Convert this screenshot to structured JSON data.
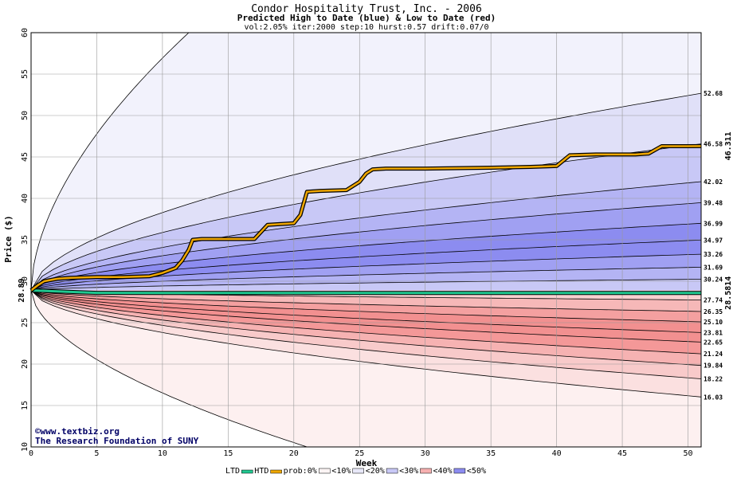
{
  "chart_data": {
    "type": "area",
    "title": "Condor Hospitality Trust, Inc. - 2006",
    "subtitle": "Predicted High to Date (blue) &  Low to Date (red)",
    "params": "vol:2.05% iter:2000 step:10 hurst:0.57 drift:0.07/0",
    "xlabel": "Week",
    "ylabel": "Price ($)",
    "xlim": [
      0,
      51
    ],
    "ylim": [
      10,
      60
    ],
    "x_ticks": [
      "0",
      "5",
      "10",
      "15",
      "20",
      "25",
      "30",
      "35",
      "40",
      "45",
      "50"
    ],
    "y_ticks": [
      "10",
      "15",
      "20",
      "25",
      "30",
      "35",
      "40",
      "45",
      "50",
      "55",
      "60"
    ],
    "start_price": 28.89,
    "start_label": "28.89",
    "right_labels": [
      "52.68",
      "46.58",
      "42.02",
      "39.48",
      "36.99",
      "34.97",
      "33.26",
      "31.69",
      "30.24",
      "27.74",
      "26.35",
      "25.10",
      "23.81",
      "22.65",
      "21.24",
      "19.84",
      "18.22",
      "16.03"
    ],
    "rotated_high_label": "46.311",
    "rotated_low_label": "28.5814",
    "high_quantiles": [
      {
        "end": 52.68,
        "fill": "#e0e0f8"
      },
      {
        "end": 46.58,
        "fill": "#c8c8f6"
      },
      {
        "end": 42.02,
        "fill": "#b4b4f4"
      },
      {
        "end": 39.48,
        "fill": "#a0a0f2"
      },
      {
        "end": 36.99,
        "fill": "#8c8cf0"
      },
      {
        "end": 34.97,
        "fill": "#8c8cf0"
      },
      {
        "end": 33.26,
        "fill": "#a0a0f2"
      },
      {
        "end": 31.69,
        "fill": "#b4b4f4"
      },
      {
        "end": 30.24,
        "fill": "#c8c8f6"
      }
    ],
    "low_quantiles": [
      {
        "end": 16.03,
        "fill": "#fbe0e0"
      },
      {
        "end": 18.22,
        "fill": "#f8caca"
      },
      {
        "end": 19.84,
        "fill": "#f6b2b2"
      },
      {
        "end": 21.24,
        "fill": "#f49898"
      },
      {
        "end": 22.65,
        "fill": "#f29090"
      },
      {
        "end": 23.81,
        "fill": "#f29090"
      },
      {
        "end": 25.1,
        "fill": "#f4a0a0"
      },
      {
        "end": 26.35,
        "fill": "#f6b8b8"
      },
      {
        "end": 27.74,
        "fill": "#f8d0d0"
      }
    ],
    "envelope": {
      "upper_end_week": 12,
      "upper_end_price": 60,
      "lower_end_week": 21,
      "lower_end_price": 10
    },
    "high_to_date": {
      "color": "#f0a800",
      "x": [
        0,
        0.5,
        1,
        2,
        3,
        5,
        7,
        9,
        10,
        11,
        11.5,
        12,
        12.3,
        13,
        15,
        17,
        18,
        19,
        20,
        20.5,
        21,
        22,
        24,
        25,
        25.5,
        26,
        27,
        30,
        35,
        38,
        40,
        41,
        43,
        46,
        47,
        48,
        50,
        51
      ],
      "y": [
        28.89,
        29.5,
        30.0,
        30.3,
        30.4,
        30.5,
        30.5,
        30.6,
        31.0,
        31.6,
        32.5,
        33.8,
        35.0,
        35.1,
        35.1,
        35.1,
        36.8,
        36.9,
        37.0,
        38.0,
        40.8,
        40.9,
        41.0,
        42.0,
        43.0,
        43.5,
        43.6,
        43.6,
        43.7,
        43.8,
        43.9,
        45.2,
        45.3,
        45.3,
        45.4,
        46.3,
        46.3,
        46.31
      ]
    },
    "low_to_date": {
      "color": "#20c890",
      "x": [
        0,
        5,
        10,
        20,
        30,
        40,
        51
      ],
      "y": [
        28.89,
        28.6,
        28.58,
        28.58,
        28.58,
        28.58,
        28.58
      ]
    },
    "grid": true
  },
  "credit": {
    "copyright": "©www.textbiz.org",
    "foundation": "The Research Foundation of SUNY"
  },
  "legend": {
    "ltd": "LTD",
    "htd": "HTD",
    "prob": "prob:0%",
    "p10": "<10%",
    "p20": "<20%",
    "p30": "<30%",
    "p40": "<40%",
    "p50": "<50%",
    "ltd_color": "#20c890",
    "htd_color": "#f0a800",
    "swatches": [
      "#fbf4f4",
      "#e8e8f8",
      "#fbd8d8",
      "#c8c8f6",
      "#f6b0b0",
      "#a8a8f2",
      "#f28a8a",
      "#8c8cf0"
    ]
  }
}
